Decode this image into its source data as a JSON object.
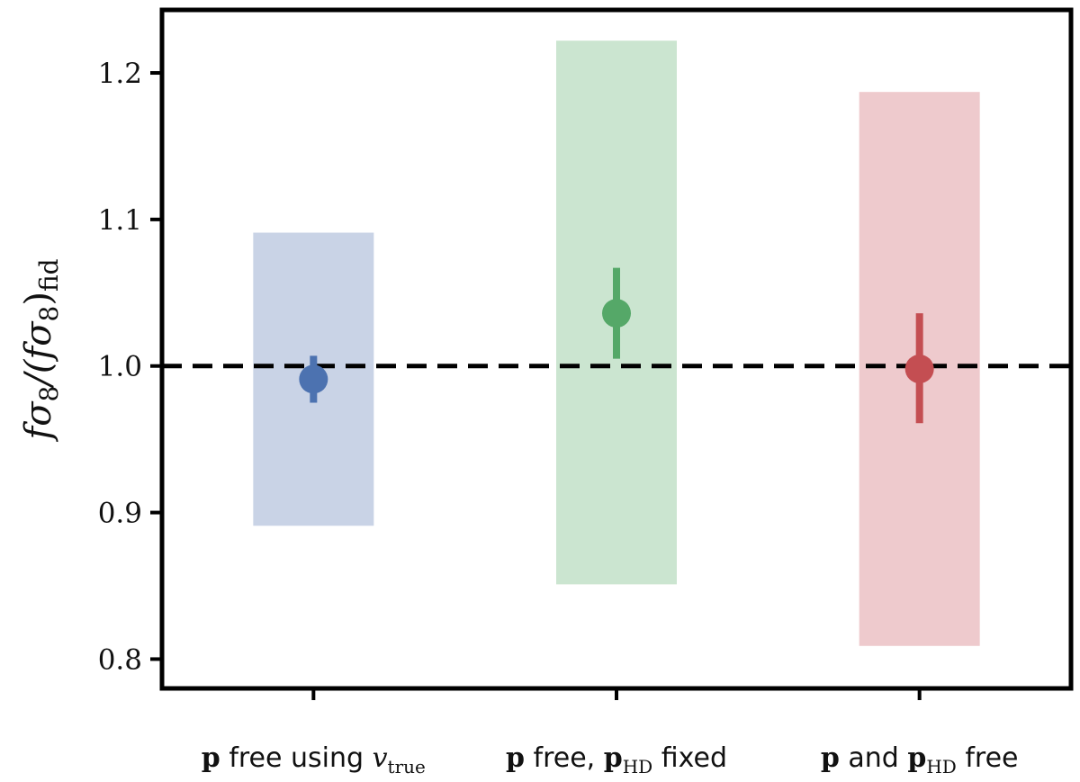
{
  "chart_data": {
    "type": "scatter",
    "ylabel": "fσ8/(fσ8)fid",
    "ylabel_parts": {
      "main": "fσ",
      "sub1": "8",
      "mid": "/(fσ",
      "sub2": "8",
      "end": ")",
      "sub3": "fid"
    },
    "ylim": [
      0.78,
      1.243
    ],
    "yticks": [
      0.8,
      0.9,
      1.0,
      1.1,
      1.2
    ],
    "ytick_labels": [
      "0.8",
      "0.9",
      "1.0",
      "1.1",
      "1.2"
    ],
    "reference_line": {
      "y": 1.0,
      "style": "dashed",
      "color": "#000000"
    },
    "grid": false,
    "categories": [
      {
        "label": "p free using vtrue",
        "parts": {
          "bold": "p",
          "text": " free using ",
          "ital": "v",
          "sub": "true"
        }
      },
      {
        "label": "p free, pHD fixed",
        "parts": {
          "bold": "p",
          "text": " free, ",
          "bold2": "p",
          "sub": "HD",
          "tail": " fixed"
        }
      },
      {
        "label": "p and pHD free",
        "parts": {
          "bold": "p",
          "text": " and ",
          "bold2": "p",
          "sub": "HD",
          "tail": " free"
        }
      }
    ],
    "points": [
      {
        "y": 0.991,
        "err_low": 0.975,
        "err_high": 1.007,
        "band_low": 0.891,
        "band_high": 1.091,
        "color": "#4c72b0",
        "band_color": "#c9d3e6"
      },
      {
        "y": 1.036,
        "err_low": 1.005,
        "err_high": 1.067,
        "band_low": 0.851,
        "band_high": 1.222,
        "color": "#55a868",
        "band_color": "#cbe5d0"
      },
      {
        "y": 0.998,
        "err_low": 0.961,
        "err_high": 1.036,
        "band_low": 0.809,
        "band_high": 1.187,
        "color": "#c44e52",
        "band_color": "#eecacd"
      }
    ]
  }
}
